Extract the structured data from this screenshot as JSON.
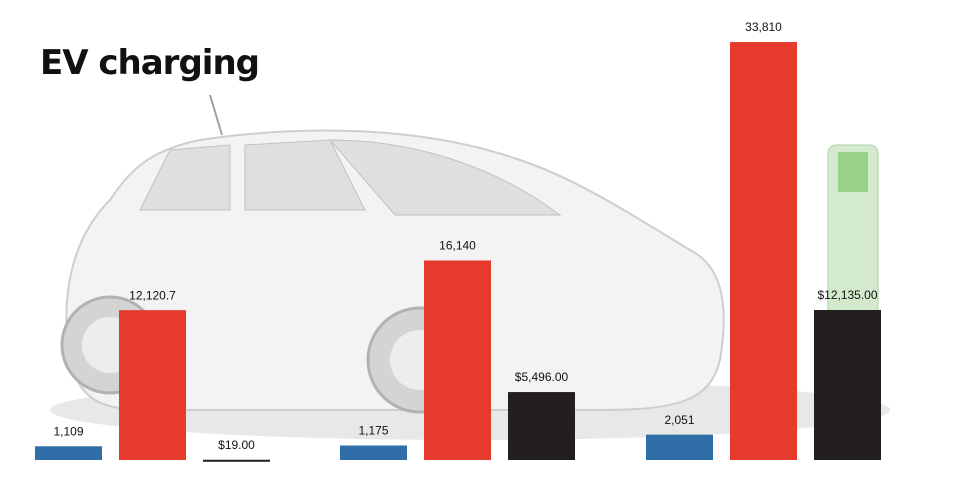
{
  "chart_data": {
    "type": "bar",
    "title": "EV charging",
    "categories": [
      null,
      null,
      null
    ],
    "ylim": [
      0,
      34000
    ],
    "series": [
      {
        "color": "#2f6ea6",
        "values": [
          1109,
          1175,
          2051
        ],
        "value_labels": [
          "1,109",
          "1,175",
          "2,051"
        ]
      },
      {
        "color": "#e53a2c",
        "values": [
          12120.7,
          16140,
          33810
        ],
        "value_labels": [
          "12,120.7",
          "16,140",
          "33,810"
        ]
      },
      {
        "color": "#231f20",
        "values": [
          19.0,
          5496.0,
          12135.0
        ],
        "value_labels": [
          "$19.00",
          "$5,496.00",
          "$12,135.00"
        ]
      }
    ]
  }
}
